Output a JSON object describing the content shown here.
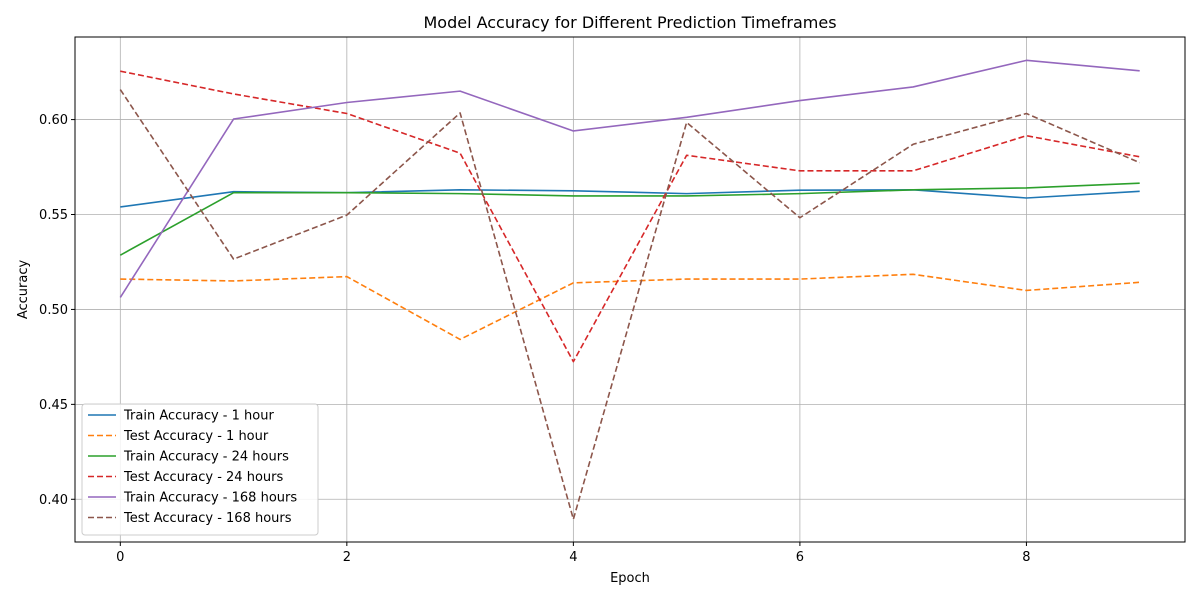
{
  "chart_data": {
    "type": "line",
    "title": "Model Accuracy for Different Prediction Timeframes",
    "xlabel": "Epoch",
    "ylabel": "Accuracy",
    "x": [
      0,
      1,
      2,
      3,
      4,
      5,
      6,
      7,
      8,
      9
    ],
    "xlim": [
      -0.4,
      9.4
    ],
    "ylim": [
      0.3775,
      0.6435
    ],
    "xticks": [
      0,
      2,
      4,
      6,
      8
    ],
    "xtick_labels": [
      "0",
      "2",
      "4",
      "6",
      "8"
    ],
    "yticks": [
      0.4,
      0.45,
      0.5,
      0.55,
      0.6
    ],
    "ytick_labels": [
      "0.40",
      "0.45",
      "0.50",
      "0.55",
      "0.60"
    ],
    "grid": true,
    "legend_position": "lower-left",
    "series": [
      {
        "name": "Train Accuracy - 1 hour",
        "color": "#1f77b4",
        "style": "solid",
        "values": [
          0.554,
          0.562,
          0.5615,
          0.563,
          0.5625,
          0.561,
          0.5628,
          0.563,
          0.5587,
          0.5622
        ]
      },
      {
        "name": "Test Accuracy - 1 hour",
        "color": "#ff7f0e",
        "style": "dashed",
        "values": [
          0.516,
          0.515,
          0.5173,
          0.4842,
          0.514,
          0.516,
          0.516,
          0.5185,
          0.51,
          0.5143
        ]
      },
      {
        "name": "Train Accuracy - 24 hours",
        "color": "#2ca02c",
        "style": "solid",
        "values": [
          0.5286,
          0.5615,
          0.5615,
          0.561,
          0.5598,
          0.5598,
          0.561,
          0.563,
          0.564,
          0.5665
        ]
      },
      {
        "name": "Test Accuracy - 24 hours",
        "color": "#d62728",
        "style": "dashed",
        "values": [
          0.6255,
          0.6135,
          0.6032,
          0.5823,
          0.4725,
          0.5812,
          0.573,
          0.573,
          0.5915,
          0.5804
        ]
      },
      {
        "name": "Train Accuracy - 168 hours",
        "color": "#9467bd",
        "style": "solid",
        "values": [
          0.5063,
          0.6003,
          0.609,
          0.615,
          0.594,
          0.6012,
          0.61,
          0.6172,
          0.6312,
          0.6257
        ]
      },
      {
        "name": "Test Accuracy - 168 hours",
        "color": "#8c564b",
        "style": "dashed",
        "values": [
          0.6158,
          0.5265,
          0.5497,
          0.6035,
          0.3895,
          0.5985,
          0.5483,
          0.587,
          0.6032,
          0.5773
        ]
      }
    ]
  }
}
